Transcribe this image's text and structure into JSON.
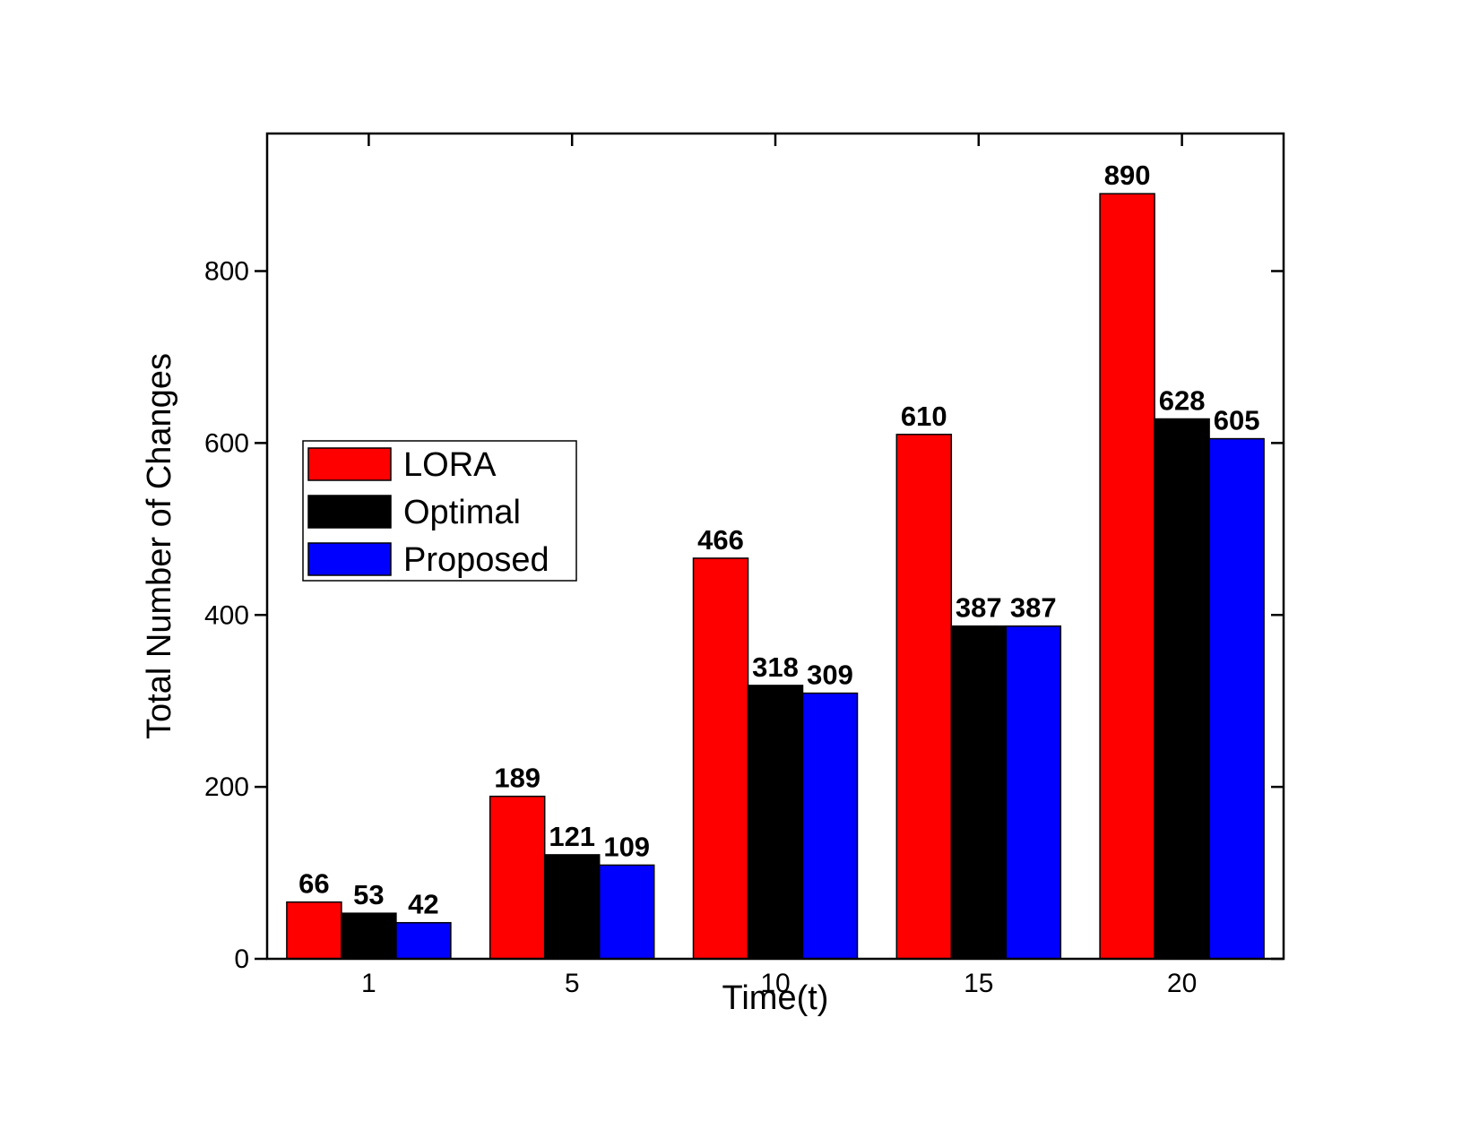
{
  "chart_data": {
    "type": "bar",
    "categories": [
      "1",
      "5",
      "10",
      "15",
      "20"
    ],
    "series": [
      {
        "name": "LORA",
        "color": "#ff0000",
        "values": [
          66,
          189,
          466,
          610,
          890
        ]
      },
      {
        "name": "Optimal",
        "color": "#000000",
        "values": [
          53,
          121,
          318,
          387,
          628
        ]
      },
      {
        "name": "Proposed",
        "color": "#0000ff",
        "values": [
          42,
          109,
          309,
          387,
          605
        ]
      }
    ],
    "xlabel": "Time(t)",
    "ylabel": "Total Number of Changes",
    "ylim": [
      0,
      960
    ],
    "yticks": [
      0,
      200,
      400,
      600,
      800
    ],
    "grid": false,
    "legend_position": "center-left",
    "data_labels": true
  }
}
